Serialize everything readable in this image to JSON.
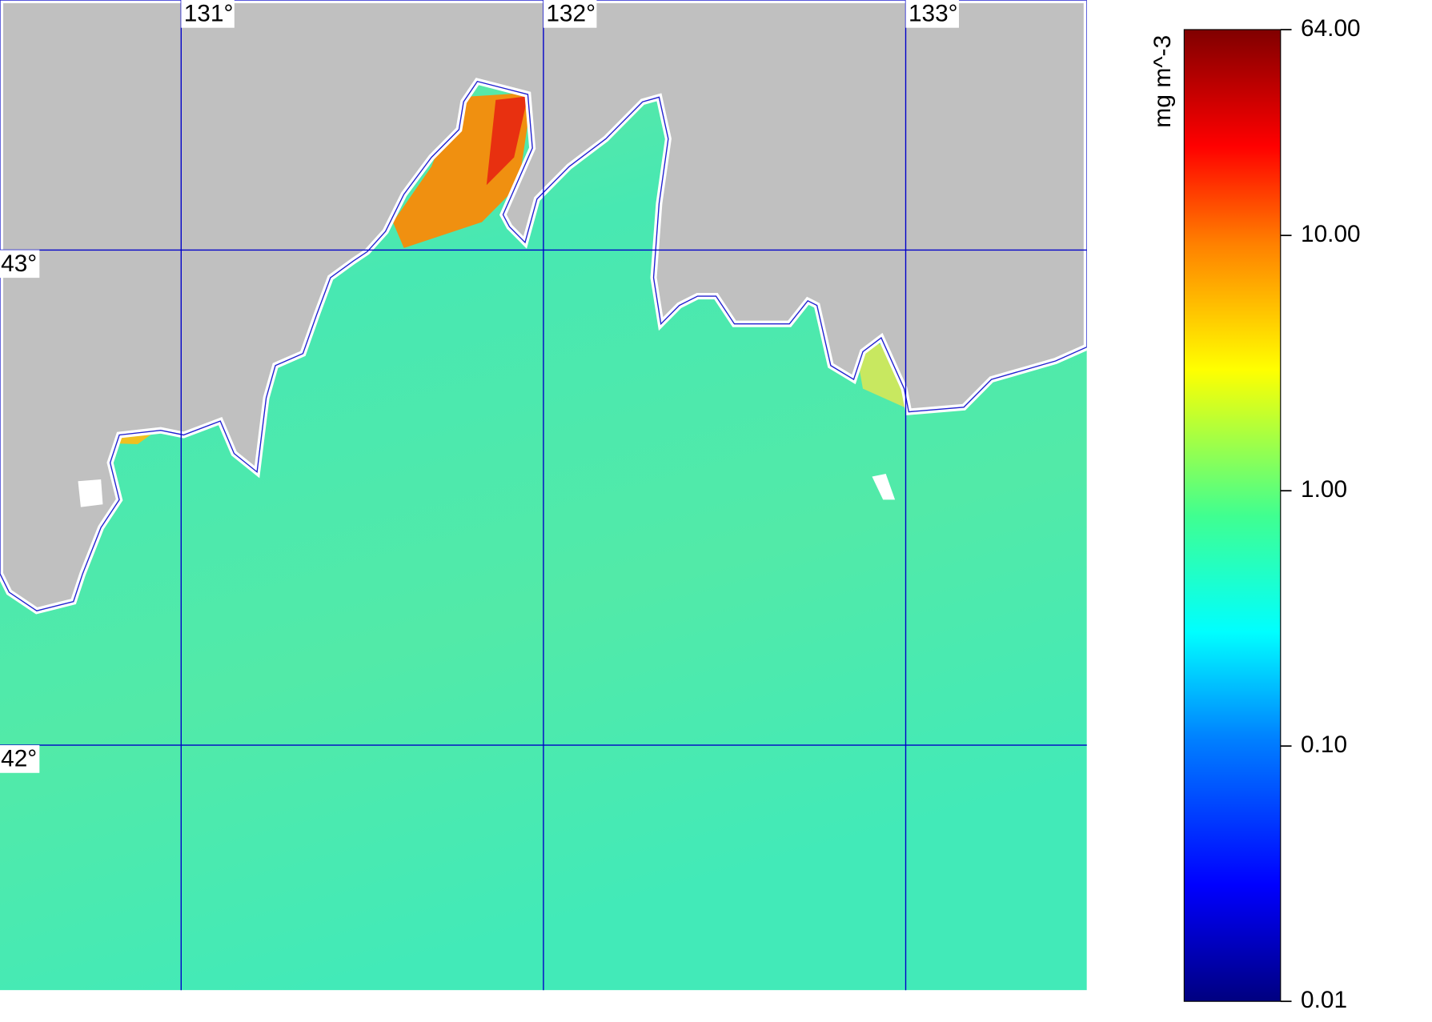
{
  "map": {
    "lon_range": [
      130.5,
      133.5
    ],
    "lat_range": [
      41.505,
      43.505
    ],
    "lon_lines": [
      {
        "value": 131,
        "label": "131°"
      },
      {
        "value": 132,
        "label": "132°"
      },
      {
        "value": 133,
        "label": "133°"
      }
    ],
    "lat_lines": [
      {
        "value": 43,
        "label": "43°"
      },
      {
        "value": 42,
        "label": "42°"
      }
    ]
  },
  "colorbar": {
    "unit": "mg m^-3",
    "scale": "log",
    "range": [
      0.01,
      64
    ],
    "ticks": [
      {
        "value": 0.01,
        "label": "0.01"
      },
      {
        "value": 0.1,
        "label": "0.10"
      },
      {
        "value": 1,
        "label": "1.00"
      },
      {
        "value": 10,
        "label": "10.00"
      },
      {
        "value": 64,
        "label": "64.00"
      }
    ]
  }
}
